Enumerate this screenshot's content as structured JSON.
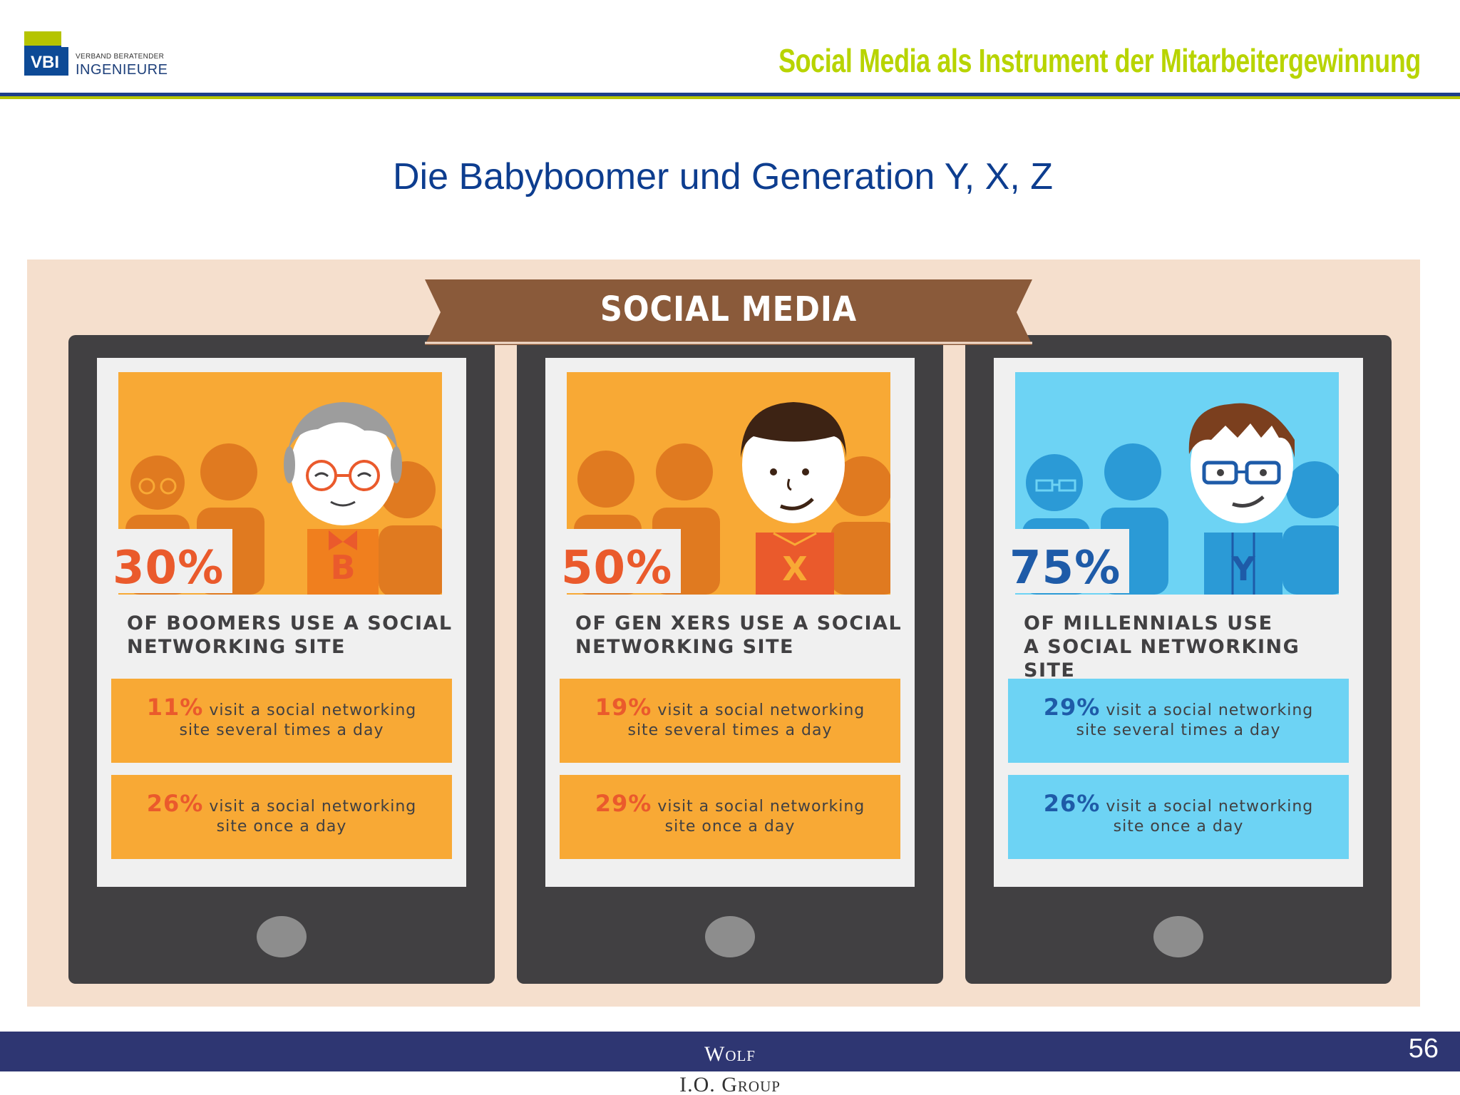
{
  "header": {
    "logo_abbr": "VBI",
    "logo_small": "VERBAND BERATENDER",
    "logo_big": "INGENIEURE",
    "title": "Social Media als Instrument der Mitarbeitergewinnung"
  },
  "slide": {
    "title": "Die Babyboomer und Generation Y, X, Z"
  },
  "infographic": {
    "banner": "SOCIAL MEDIA",
    "phones": [
      {
        "percent": "30%",
        "letter": "B",
        "desc_line1": "OF BOOMERS USE A SOCIAL",
        "desc_line2": "NETWORKING SITE",
        "stat1_num": "11%",
        "stat1_line1": "visit a social networking",
        "stat1_line2": "site several times a day",
        "stat2_num": "26%",
        "stat2_line1": "visit a social networking",
        "stat2_line2": "site once a day"
      },
      {
        "percent": "50%",
        "letter": "X",
        "desc_line1": "OF GEN XERS USE A SOCIAL",
        "desc_line2": "NETWORKING SITE",
        "stat1_num": "19%",
        "stat1_line1": "visit a social networking",
        "stat1_line2": "site several times a day",
        "stat2_num": "29%",
        "stat2_line1": "visit a social networking",
        "stat2_line2": "site once a day"
      },
      {
        "percent": "75%",
        "letter": "Y",
        "desc_line1": "OF MILLENNIALS USE",
        "desc_line2": "A SOCIAL NETWORKING SITE",
        "stat1_num": "29%",
        "stat1_line1": "visit a social networking",
        "stat1_line2": "site several times a day",
        "stat2_num": "26%",
        "stat2_line1": "visit a social networking",
        "stat2_line2": "site once a day"
      }
    ]
  },
  "footer": {
    "line1": "Wolf",
    "line2": "I.O. Group",
    "page_number": "56"
  },
  "colors": {
    "accent_green": "#b8d400",
    "brand_blue": "#1d3f8a",
    "orange": "#f8a935",
    "orange_text": "#ea5a2c",
    "light_blue": "#6dd3f4",
    "blue_text": "#1e5ba8"
  }
}
